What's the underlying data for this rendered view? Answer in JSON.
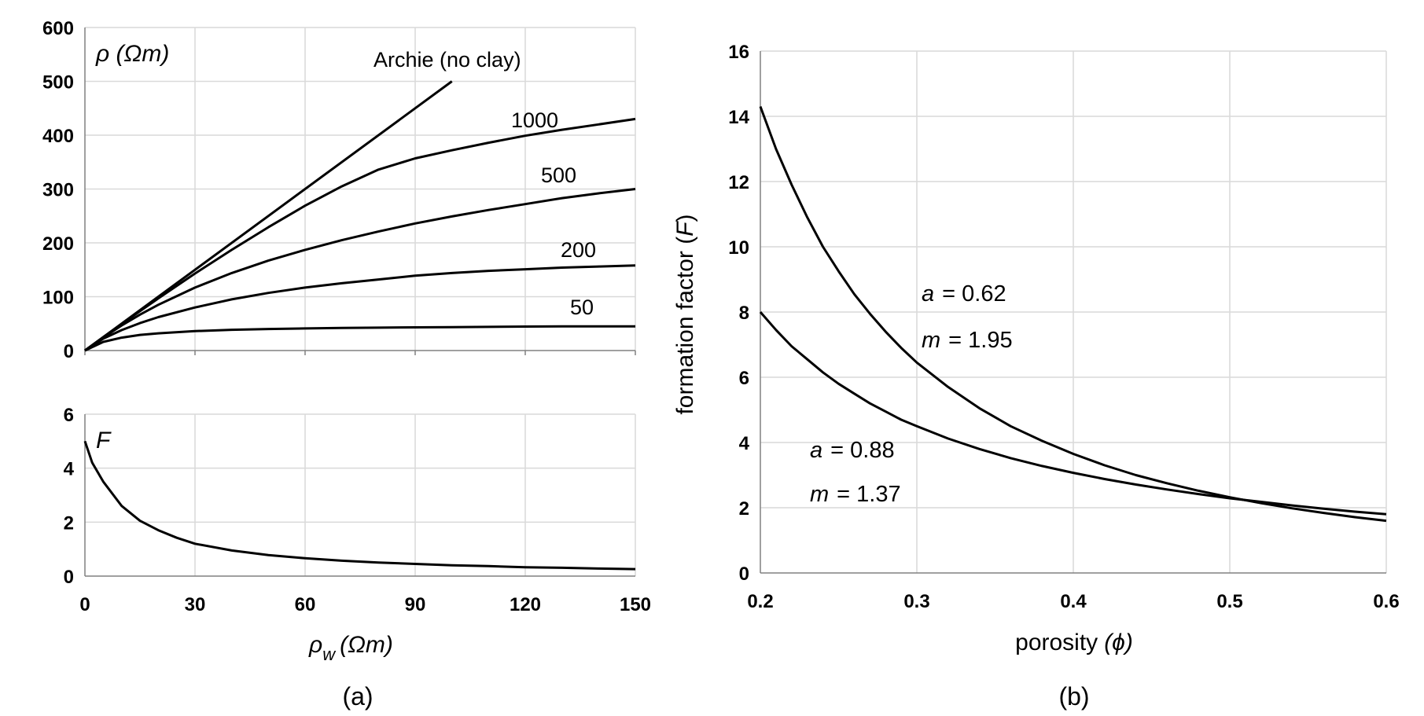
{
  "panels": {
    "a": "(a)",
    "b": "(b)"
  },
  "chart_data": [
    {
      "type": "line",
      "xlabel_main": "ρ",
      "xlabel_sub": "w",
      "xlabel_unit": "(Ωm)",
      "ylabel": "ρ (Ωm)",
      "xlim": [
        0,
        150
      ],
      "ylim": [
        0,
        600
      ],
      "xticks": [
        0,
        30,
        60,
        90,
        120,
        150
      ],
      "yticks": [
        0,
        100,
        200,
        300,
        400,
        500,
        600
      ],
      "x": [
        0,
        5,
        10,
        15,
        20,
        30,
        40,
        50,
        60,
        70,
        80,
        90,
        100,
        110,
        120,
        130,
        140,
        150
      ],
      "series": [
        {
          "name": "Archie (no clay)",
          "x": [
            0,
            100
          ],
          "values": [
            0,
            500
          ]
        },
        {
          "name": "1000",
          "values": [
            0,
            24.8,
            49.2,
            73.2,
            96.8,
            143,
            187,
            229,
            269,
            305,
            336,
            357,
            372,
            386,
            399,
            410,
            420,
            430
          ]
        },
        {
          "name": "500",
          "values": [
            0,
            24.3,
            46.5,
            66.7,
            85,
            117,
            144,
            167,
            187,
            205,
            221,
            236,
            249,
            261,
            272,
            283,
            292,
            300
          ]
        },
        {
          "name": "200",
          "values": [
            0,
            22,
            38,
            51,
            62,
            80,
            95,
            107,
            117,
            125,
            132,
            139,
            144,
            148,
            151,
            154,
            156,
            158
          ]
        },
        {
          "name": "50",
          "values": [
            0,
            16,
            24,
            29,
            32,
            36,
            38.5,
            40,
            41,
            42,
            42.5,
            43,
            43.5,
            44,
            44.5,
            45,
            45,
            45
          ]
        }
      ]
    },
    {
      "type": "line",
      "ylabel": "F",
      "xlim": [
        0,
        150
      ],
      "ylim": [
        0,
        6
      ],
      "xticks": [
        0,
        30,
        60,
        90,
        120,
        150
      ],
      "yticks": [
        0,
        2,
        4,
        6
      ],
      "series": [
        {
          "x": [
            0,
            2,
            5,
            10,
            15,
            20,
            25,
            30,
            40,
            50,
            60,
            70,
            80,
            90,
            100,
            110,
            120,
            130,
            140,
            150
          ],
          "values": [
            5.0,
            4.2,
            3.5,
            2.6,
            2.05,
            1.7,
            1.42,
            1.2,
            0.95,
            0.78,
            0.66,
            0.57,
            0.5,
            0.45,
            0.4,
            0.37,
            0.33,
            0.31,
            0.28,
            0.26
          ]
        }
      ]
    },
    {
      "type": "line",
      "xlabel": "porosity",
      "xlabel_sym": "(ϕ)",
      "ylabel": "formation factor (",
      "ylabel_sym": "F",
      "ylabel_end": ")",
      "xlim": [
        0.2,
        0.6
      ],
      "ylim": [
        0,
        16
      ],
      "xticks": [
        0.2,
        0.3,
        0.4,
        0.5,
        0.6
      ],
      "xticklabels": [
        "0.2",
        "0.3",
        "0.4",
        "0.5",
        "0.6"
      ],
      "yticks": [
        0,
        2,
        4,
        6,
        8,
        10,
        12,
        14,
        16
      ],
      "x": [
        0.2,
        0.21,
        0.22,
        0.23,
        0.24,
        0.25,
        0.26,
        0.27,
        0.28,
        0.29,
        0.3,
        0.32,
        0.34,
        0.36,
        0.38,
        0.4,
        0.42,
        0.44,
        0.46,
        0.48,
        0.5,
        0.52,
        0.54,
        0.56,
        0.58,
        0.6
      ],
      "series": [
        {
          "a_label": "a",
          "a_value": "= 0.62",
          "m_label": "m",
          "m_value": "= 1.95",
          "values": [
            14.3,
            13.0,
            11.9,
            10.9,
            10.0,
            9.25,
            8.55,
            7.95,
            7.4,
            6.9,
            6.45,
            5.7,
            5.05,
            4.5,
            4.05,
            3.65,
            3.3,
            3.0,
            2.75,
            2.52,
            2.32,
            2.14,
            1.98,
            1.84,
            1.71,
            1.6
          ]
        },
        {
          "a_label": "a",
          "a_value": "= 0.88",
          "m_label": "m",
          "m_value": "= 1.37",
          "values": [
            8.0,
            7.45,
            6.95,
            6.55,
            6.15,
            5.8,
            5.5,
            5.2,
            4.95,
            4.7,
            4.5,
            4.12,
            3.8,
            3.52,
            3.28,
            3.07,
            2.88,
            2.71,
            2.56,
            2.42,
            2.29,
            2.18,
            2.07,
            1.97,
            1.88,
            1.8
          ]
        }
      ]
    }
  ]
}
